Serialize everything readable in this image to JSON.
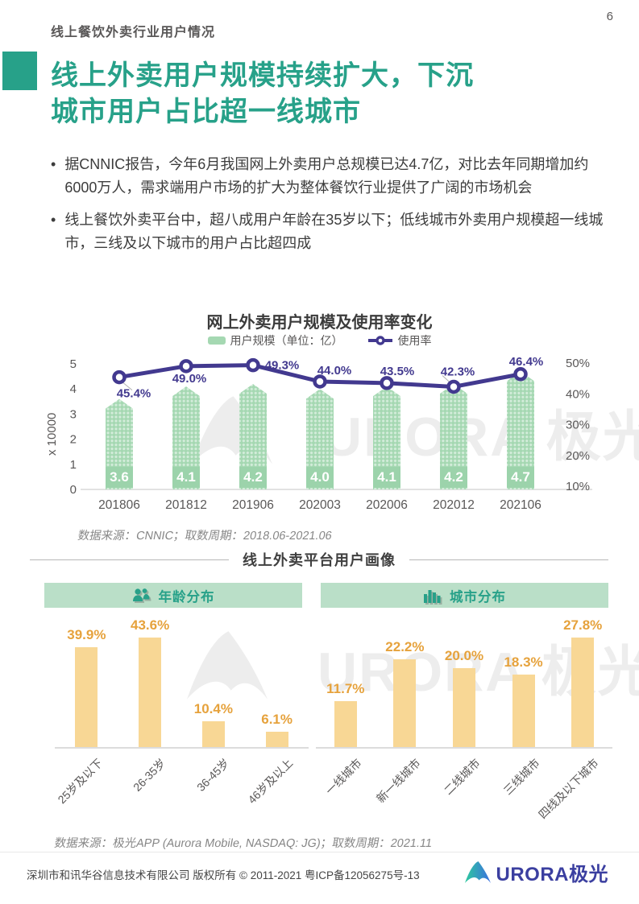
{
  "page": {
    "number": "6"
  },
  "header": {
    "eyebrow": "线上餐饮外卖行业用户情况"
  },
  "title": {
    "lines": [
      "线上外卖用户规模持续扩大，下沉",
      "城市用户占比超一线城市"
    ]
  },
  "bullets": [
    "据CNNIC报告，今年6月我国网上外卖用户总规模已达4.7亿，对比去年同期增加约6000万人，需求端用户市场的扩大为整体餐饮行业提供了广阔的市场机会",
    "线上餐饮外卖平台中，超八成用户年龄在35岁以下；低线城市外卖用户规模超一线城市，三线及以下城市的用户占比超四成"
  ],
  "chart_data": [
    {
      "type": "combo-bar-line",
      "title": "网上外卖用户规模及使用率变化",
      "legend": [
        {
          "label": "用户规模（单位：亿）",
          "marker": "bar",
          "color": "#a5d8b2"
        },
        {
          "label": "使用率",
          "marker": "line",
          "color": "#42398f"
        }
      ],
      "categories": [
        "201806",
        "201812",
        "201906",
        "202003",
        "202006",
        "202012",
        "202106"
      ],
      "series": [
        {
          "name": "用户规模",
          "type": "bar",
          "unit": "亿",
          "values": [
            3.6,
            4.1,
            4.2,
            4.0,
            4.1,
            4.2,
            4.7
          ]
        },
        {
          "name": "使用率",
          "type": "line",
          "unit": "%",
          "values": [
            45.4,
            49.0,
            49.3,
            44.0,
            43.5,
            42.3,
            46.4
          ]
        }
      ],
      "left_axis": {
        "label": "x 10000",
        "ticks": [
          0,
          1,
          2,
          3,
          4,
          5
        ],
        "range": [
          0,
          5
        ]
      },
      "right_axis": {
        "ticks": [
          "10%",
          "20%",
          "30%",
          "40%",
          "50%"
        ],
        "range": [
          10,
          50
        ]
      },
      "grid": false,
      "legend_position": "top",
      "source": "数据来源：CNNIC；取数周期：2018.06-2021.06"
    },
    {
      "type": "bar",
      "title": "年龄分布",
      "categories": [
        "25岁及以下",
        "26-35岁",
        "36-45岁",
        "46岁及以上"
      ],
      "values": [
        39.9,
        43.6,
        10.4,
        6.1
      ],
      "unit": "%",
      "bar_color": "#f8d795",
      "label_color": "#e6a23c"
    },
    {
      "type": "bar",
      "title": "城市分布",
      "categories": [
        "一线城市",
        "新一线城市",
        "二线城市",
        "三线城市",
        "四线及以下城市"
      ],
      "values": [
        11.7,
        22.2,
        20.0,
        18.3,
        27.8
      ],
      "unit": "%",
      "bar_color": "#f8d795",
      "label_color": "#e6a23c"
    }
  ],
  "section": {
    "divider_title": "线上外卖平台用户画像"
  },
  "panel_headers": [
    {
      "icon": "people-icon",
      "label": "年龄分布"
    },
    {
      "icon": "bar-chart-icon",
      "label": "城市分布"
    }
  ],
  "sources": {
    "bottom": "数据来源：极光APP (Aurora Mobile, NASDAQ: JG)；取数周期：2021.11"
  },
  "watermark": {
    "text": "URORA",
    "suffix": "极光"
  },
  "footer": {
    "copyright": "深圳市和讯华谷信息技术有限公司 版权所有 © 2011-2021 粤ICP备12056275号-13",
    "logo_text": "URORA",
    "logo_suffix": "极光"
  },
  "colors": {
    "accent_teal": "#27a189",
    "line_indigo": "#42398f",
    "bar_green": "#a5d8b2",
    "bar_green_band": "#9cd3ab",
    "bar_orange": "#f8d795",
    "label_orange": "#e6a23c",
    "panel_header_bg": "#badfc8",
    "text_gray": "#595757"
  }
}
